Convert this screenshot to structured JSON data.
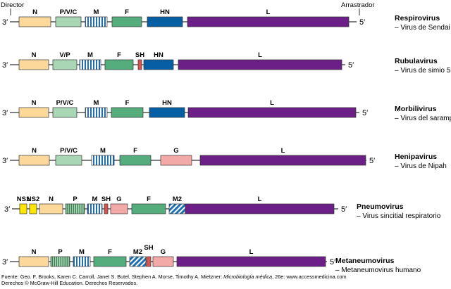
{
  "figure": {
    "director_label": "Director",
    "trailer_label": "Arrastrador",
    "end3": "3′",
    "end5": "5′"
  },
  "colors": {
    "N": "#fcd89a",
    "P": "#a9d6b4",
    "V": "#a9d6b4",
    "M": "#1f6fb0",
    "F": "#55ad7e",
    "SH": "#d9534f",
    "HN": "#075fa3",
    "G": "#f3a9a8",
    "L": "#6c1f86",
    "NS": "#ffe600",
    "M2": "#1f6fb0",
    "line": "#000000"
  },
  "genomes": [
    {
      "genus": "Respirovirus",
      "species": "– Virus de Sendai",
      "genes": [
        {
          "name": "N",
          "type": "N"
        },
        {
          "name": "P/V/C",
          "type": "P"
        },
        {
          "name": "M",
          "type": "M",
          "pattern": "stripes-v"
        },
        {
          "name": "F",
          "type": "F"
        },
        {
          "name": "HN",
          "type": "HN"
        },
        {
          "name": "L",
          "type": "L"
        }
      ]
    },
    {
      "genus": "Rubulavirus",
      "species": "– Virus de simio 5",
      "genes": [
        {
          "name": "N",
          "type": "N"
        },
        {
          "name": "V/P",
          "type": "V"
        },
        {
          "name": "M",
          "type": "M",
          "pattern": "stripes-v"
        },
        {
          "name": "F",
          "type": "F"
        },
        {
          "name": "SH",
          "type": "SH"
        },
        {
          "name": "HN",
          "type": "HN"
        },
        {
          "name": "L",
          "type": "L"
        }
      ]
    },
    {
      "genus": "Morbilivirus",
      "species": "– Virus del sarampión",
      "genes": [
        {
          "name": "N",
          "type": "N"
        },
        {
          "name": "P/V/C",
          "type": "P"
        },
        {
          "name": "M",
          "type": "M",
          "pattern": "stripes-v"
        },
        {
          "name": "F",
          "type": "F"
        },
        {
          "name": "HN",
          "type": "HN"
        },
        {
          "name": "L",
          "type": "L"
        }
      ]
    },
    {
      "genus": "Henipavirus",
      "species": "– Virus de Nipah",
      "genes": [
        {
          "name": "N",
          "type": "N"
        },
        {
          "name": "P/V/C",
          "type": "P"
        },
        {
          "name": "M",
          "type": "M",
          "pattern": "stripes-v"
        },
        {
          "name": "F",
          "type": "F"
        },
        {
          "name": "G",
          "type": "G"
        },
        {
          "name": "L",
          "type": "L"
        }
      ]
    },
    {
      "genus": "Pneumovirus",
      "species": "– Virus sincitial respiratorio",
      "genes": [
        {
          "name": "NS1",
          "type": "NS"
        },
        {
          "name": "NS2",
          "type": "NS"
        },
        {
          "name": "N",
          "type": "N"
        },
        {
          "name": "P",
          "type": "P",
          "pattern": "stripes-v"
        },
        {
          "name": "M",
          "type": "M",
          "pattern": "stripes-v"
        },
        {
          "name": "SH",
          "type": "SH"
        },
        {
          "name": "G",
          "type": "G"
        },
        {
          "name": "F",
          "type": "F"
        },
        {
          "name": "M2",
          "type": "M2",
          "pattern": "stripes-d"
        },
        {
          "name": "L",
          "type": "L"
        }
      ]
    },
    {
      "genus": "Metaneumovirus",
      "species": "– Metaneumovirus humano",
      "genes": [
        {
          "name": "N",
          "type": "N"
        },
        {
          "name": "P",
          "type": "P",
          "pattern": "stripes-v"
        },
        {
          "name": "M",
          "type": "M",
          "pattern": "stripes-v"
        },
        {
          "name": "F",
          "type": "F"
        },
        {
          "name": "M2",
          "type": "M2",
          "pattern": "stripes-d"
        },
        {
          "name": "SH",
          "type": "SH"
        },
        {
          "name": "G",
          "type": "G"
        },
        {
          "name": "L",
          "type": "L"
        }
      ]
    }
  ],
  "footer": {
    "source_prefix": "Fuente: Geo. F. Brooks, Karen C. Carroll, Janet S. Butel, Stephen A. Morse, Timothy A. Mietzner: ",
    "book_title": "Microbiología médica",
    "source_suffix": ", 26e: www.accessmedicina.com",
    "rights": "Derechos © McGraw-Hill Education. Derechos Reservados."
  }
}
